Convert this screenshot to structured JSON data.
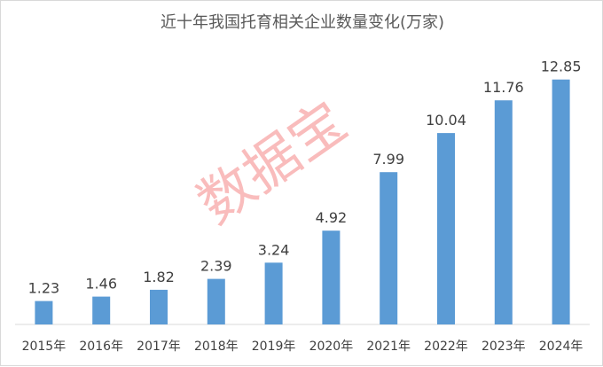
{
  "chart_data": {
    "type": "bar",
    "title": "近十年我国托育相关企业数量变化(万家)",
    "categories": [
      "2015年",
      "2016年",
      "2017年",
      "2018年",
      "2019年",
      "2020年",
      "2021年",
      "2022年",
      "2023年",
      "2024年"
    ],
    "values": [
      1.23,
      1.46,
      1.82,
      2.39,
      3.24,
      4.92,
      7.99,
      10.04,
      11.76,
      12.85
    ],
    "value_labels": [
      "1.23",
      "1.46",
      "1.82",
      "2.39",
      "3.24",
      "4.92",
      "7.99",
      "10.04",
      "11.76",
      "12.85"
    ],
    "xlabel": "",
    "ylabel": "",
    "ylim": [
      0,
      14
    ],
    "grid": false,
    "legend": "none",
    "bar_color": "#5b9bd5"
  },
  "watermark": "数据宝"
}
